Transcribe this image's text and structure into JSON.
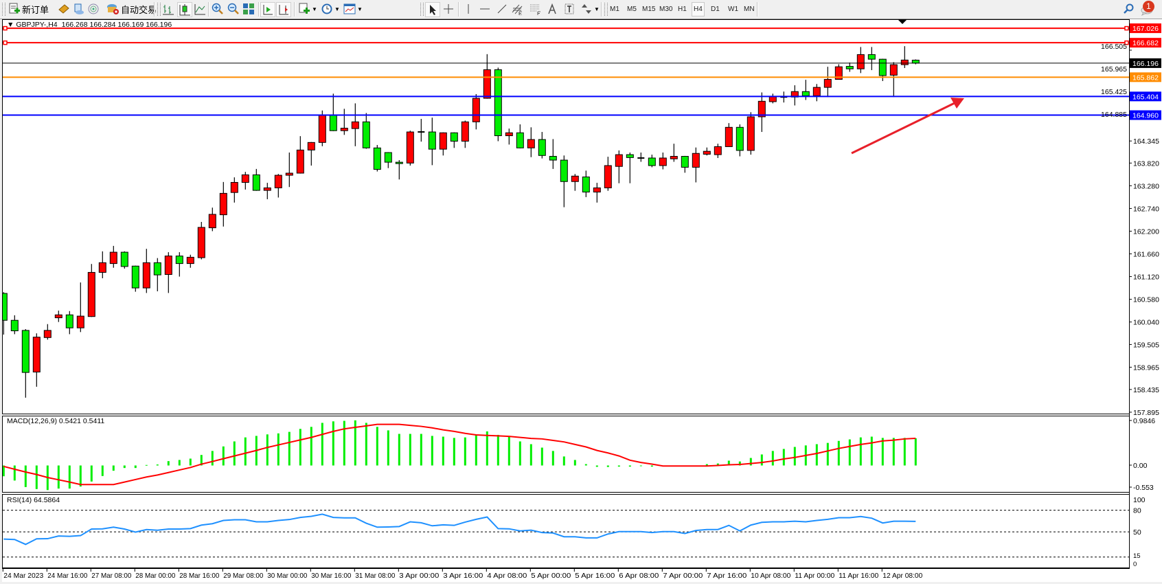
{
  "toolbar": {
    "new_order_label": "新订单",
    "auto_trade_label": "自动交易",
    "timeframes": [
      "M1",
      "M5",
      "M15",
      "M30",
      "H1",
      "H4",
      "D1",
      "W1",
      "MN"
    ],
    "active_timeframe": "H4",
    "notification_count": "1"
  },
  "chart": {
    "symbol_period": "GBPJPY-,H4",
    "ohlc_readout": "166.268 166.284 166.169 166.196"
  },
  "colors": {
    "bull_candle": "#ff0000",
    "bear_candle": "#00ee00",
    "macd_histogram": "#00ee00",
    "macd_signal": "#ff0000",
    "rsi_line": "#1e90ff",
    "annotation_arrow": "#e8202a"
  },
  "chart_data": {
    "type": "candlestick",
    "title": "GBPJPY-,H4",
    "ylim": [
      157.895,
      167.1
    ],
    "price_ticks": [
      "166.505",
      "165.965",
      "165.425",
      "164.885",
      "164.345",
      "163.820",
      "163.280",
      "162.740",
      "162.200",
      "161.660",
      "161.120",
      "160.580",
      "160.040",
      "159.505",
      "158.965",
      "158.435",
      "157.895"
    ],
    "time_labels": [
      "24 Mar 2023",
      "24 Mar 16:00",
      "27 Mar 08:00",
      "28 Mar 00:00",
      "28 Mar 16:00",
      "29 Mar 08:00",
      "30 Mar 00:00",
      "30 Mar 16:00",
      "31 Mar 08:00",
      "3 Apr 00:00",
      "3 Apr 16:00",
      "4 Apr 08:00",
      "5 Apr 00:00",
      "5 Apr 16:00",
      "6 Apr 08:00",
      "7 Apr 00:00",
      "7 Apr 16:00",
      "10 Apr 08:00",
      "11 Apr 00:00",
      "11 Apr 16:00",
      "12 Apr 08:00"
    ],
    "candles_ohlc": [
      [
        160.72,
        160.75,
        159.74,
        160.08
      ],
      [
        160.08,
        160.2,
        159.75,
        159.83
      ],
      [
        159.84,
        159.87,
        158.24,
        158.84
      ],
      [
        158.85,
        159.77,
        158.5,
        159.68
      ],
      [
        159.67,
        159.99,
        159.62,
        159.84
      ],
      [
        160.14,
        160.31,
        160.04,
        160.21
      ],
      [
        160.21,
        160.3,
        159.75,
        159.9
      ],
      [
        159.9,
        160.98,
        159.8,
        160.18
      ],
      [
        160.17,
        161.42,
        160.16,
        161.22
      ],
      [
        161.22,
        161.72,
        161.08,
        161.45
      ],
      [
        161.43,
        161.85,
        161.33,
        161.7
      ],
      [
        161.7,
        161.72,
        161.31,
        161.36
      ],
      [
        161.37,
        161.38,
        160.76,
        160.85
      ],
      [
        160.85,
        161.78,
        160.73,
        161.45
      ],
      [
        161.45,
        161.56,
        160.77,
        161.16
      ],
      [
        161.17,
        161.7,
        160.73,
        161.61
      ],
      [
        161.61,
        161.7,
        161.12,
        161.43
      ],
      [
        161.43,
        161.64,
        161.33,
        161.58
      ],
      [
        161.57,
        162.42,
        161.53,
        162.29
      ],
      [
        162.28,
        162.76,
        162.2,
        162.6
      ],
      [
        162.59,
        163.37,
        162.31,
        163.1
      ],
      [
        163.12,
        163.48,
        162.88,
        163.36
      ],
      [
        163.36,
        163.61,
        163.19,
        163.54
      ],
      [
        163.54,
        163.68,
        163.16,
        163.17
      ],
      [
        163.17,
        163.35,
        162.96,
        163.23
      ],
      [
        163.23,
        163.56,
        163.0,
        163.53
      ],
      [
        163.53,
        164.07,
        163.25,
        163.58
      ],
      [
        163.58,
        164.46,
        163.57,
        164.13
      ],
      [
        164.13,
        164.32,
        163.76,
        164.31
      ],
      [
        164.31,
        165.07,
        164.22,
        164.96
      ],
      [
        164.96,
        165.47,
        164.58,
        164.59
      ],
      [
        164.59,
        165.11,
        164.49,
        164.65
      ],
      [
        164.64,
        165.24,
        164.22,
        164.8
      ],
      [
        164.8,
        165.01,
        164.16,
        164.18
      ],
      [
        164.18,
        164.25,
        163.62,
        163.67
      ],
      [
        164.07,
        164.08,
        163.7,
        163.84
      ],
      [
        163.84,
        163.89,
        163.43,
        163.83
      ],
      [
        163.82,
        164.59,
        163.76,
        164.56
      ],
      [
        164.56,
        164.87,
        164.33,
        164.56
      ],
      [
        164.56,
        164.9,
        163.77,
        164.15
      ],
      [
        164.15,
        164.55,
        164.0,
        164.54
      ],
      [
        164.54,
        164.55,
        164.18,
        164.34
      ],
      [
        164.34,
        164.83,
        164.18,
        164.8
      ],
      [
        164.8,
        165.46,
        164.62,
        165.36
      ],
      [
        165.36,
        166.41,
        165.35,
        166.04
      ],
      [
        166.04,
        166.09,
        164.34,
        164.47
      ],
      [
        164.47,
        164.64,
        164.26,
        164.54
      ],
      [
        164.54,
        164.74,
        164.17,
        164.18
      ],
      [
        164.18,
        164.67,
        163.96,
        164.38
      ],
      [
        164.38,
        164.56,
        163.93,
        164.0
      ],
      [
        163.98,
        164.39,
        163.68,
        163.89
      ],
      [
        163.89,
        164.0,
        162.77,
        163.38
      ],
      [
        163.38,
        163.56,
        163.16,
        163.51
      ],
      [
        163.49,
        163.64,
        163.01,
        163.13
      ],
      [
        163.13,
        163.35,
        162.88,
        163.23
      ],
      [
        163.23,
        163.97,
        163.16,
        163.76
      ],
      [
        163.74,
        164.12,
        163.34,
        164.02
      ],
      [
        164.02,
        164.07,
        163.34,
        163.95
      ],
      [
        163.94,
        164.07,
        163.85,
        163.94
      ],
      [
        163.94,
        164.02,
        163.72,
        163.76
      ],
      [
        163.76,
        164.07,
        163.67,
        163.94
      ],
      [
        163.92,
        164.28,
        163.85,
        163.98
      ],
      [
        163.98,
        163.99,
        163.59,
        163.72
      ],
      [
        163.72,
        164.19,
        163.36,
        164.05
      ],
      [
        164.03,
        164.19,
        164.0,
        164.1
      ],
      [
        164.02,
        164.28,
        163.94,
        164.21
      ],
      [
        164.21,
        164.77,
        164.21,
        164.67
      ],
      [
        164.67,
        164.74,
        163.98,
        164.12
      ],
      [
        164.12,
        165.03,
        164.02,
        164.92
      ],
      [
        164.92,
        165.5,
        164.56,
        165.29
      ],
      [
        165.28,
        165.47,
        165.24,
        165.4
      ],
      [
        165.39,
        165.52,
        165.26,
        165.39
      ],
      [
        165.39,
        165.67,
        165.19,
        165.52
      ],
      [
        165.52,
        165.8,
        165.32,
        165.42
      ],
      [
        165.42,
        165.7,
        165.29,
        165.62
      ],
      [
        165.62,
        166.11,
        165.39,
        165.81
      ],
      [
        165.81,
        166.17,
        165.81,
        166.11
      ],
      [
        166.12,
        166.21,
        165.99,
        166.06
      ],
      [
        166.06,
        166.58,
        165.96,
        166.4
      ],
      [
        166.4,
        166.58,
        166.03,
        166.29
      ],
      [
        166.29,
        166.3,
        165.77,
        165.9
      ],
      [
        165.91,
        166.22,
        165.39,
        166.16
      ],
      [
        166.16,
        166.6,
        166.08,
        166.27
      ],
      [
        166.268,
        166.284,
        166.169,
        166.196
      ]
    ],
    "horizontal_lines": [
      {
        "price": 167.026,
        "label": "167.026",
        "color": "#ff0000",
        "label_text_color": "#ffffff",
        "handles": true
      },
      {
        "price": 166.682,
        "label": "166.682",
        "color": "#ff0000",
        "label_text_color": "#ffffff",
        "handles": true
      },
      {
        "price": 166.196,
        "label": "166.196",
        "color": "#000000",
        "label_text_color": "#ffffff",
        "handles": false
      },
      {
        "price": 165.862,
        "label": "165.862",
        "color": "#ff8c00",
        "label_text_color": "#ffffff",
        "handles": false
      },
      {
        "price": 165.404,
        "label": "165.404",
        "color": "#0000ff",
        "label_text_color": "#ffffff",
        "handles": false
      },
      {
        "price": 164.96,
        "label": "164.960",
        "color": "#0000ff",
        "label_text_color": "#ffffff",
        "handles": false
      }
    ],
    "macd": {
      "label": "MACD(12,26,9) 0.5421 0.5411",
      "ylim": [
        -0.553,
        0.9846
      ],
      "axis_labels": [
        "0.9846",
        "0.00",
        "-0.553"
      ],
      "histogram": [
        -0.215,
        -0.3,
        -0.43,
        -0.47,
        -0.49,
        -0.46,
        -0.46,
        -0.42,
        -0.32,
        -0.21,
        -0.105,
        -0.05,
        -0.05,
        0.01,
        0.02,
        0.087,
        0.11,
        0.137,
        0.21,
        0.29,
        0.38,
        0.48,
        0.56,
        0.59,
        0.62,
        0.64,
        0.67,
        0.73,
        0.77,
        0.85,
        0.88,
        0.89,
        0.9,
        0.85,
        0.77,
        0.7,
        0.63,
        0.63,
        0.63,
        0.59,
        0.575,
        0.55,
        0.56,
        0.61,
        0.68,
        0.61,
        0.575,
        0.48,
        0.425,
        0.356,
        0.29,
        0.18,
        0.11,
        0.027,
        -0.027,
        -0.03,
        -0.023,
        -0.023,
        -0.01,
        -0.023,
        0,
        0,
        0,
        0,
        0.027,
        0.04,
        0.096,
        0.08,
        0.15,
        0.22,
        0.29,
        0.33,
        0.37,
        0.4,
        0.425,
        0.45,
        0.49,
        0.52,
        0.56,
        0.575,
        0.55,
        0.55,
        0.55,
        0.5421
      ],
      "signal": [
        -0.018,
        -0.075,
        -0.13,
        -0.18,
        -0.24,
        -0.285,
        -0.33,
        -0.38,
        -0.38,
        -0.38,
        -0.38,
        -0.33,
        -0.28,
        -0.23,
        -0.19,
        -0.14,
        -0.09,
        -0.04,
        0.027,
        0.08,
        0.135,
        0.19,
        0.245,
        0.3,
        0.36,
        0.41,
        0.46,
        0.51,
        0.56,
        0.62,
        0.68,
        0.73,
        0.76,
        0.79,
        0.82,
        0.82,
        0.82,
        0.8,
        0.78,
        0.75,
        0.71,
        0.68,
        0.64,
        0.61,
        0.6,
        0.59,
        0.58,
        0.56,
        0.54,
        0.53,
        0.5,
        0.47,
        0.42,
        0.37,
        0.3,
        0.25,
        0.19,
        0.105,
        0.06,
        0.027,
        -0.01,
        -0.01,
        -0.01,
        -0.01,
        -0.01,
        0.0,
        0.014,
        0.02,
        0.04,
        0.06,
        0.09,
        0.13,
        0.16,
        0.2,
        0.24,
        0.29,
        0.34,
        0.38,
        0.42,
        0.45,
        0.49,
        0.505,
        0.53,
        0.5411
      ]
    },
    "rsi": {
      "label": "RSI(14) 64.5864",
      "ylim": [
        0,
        100
      ],
      "levels": [
        80,
        50,
        15
      ],
      "axis_labels": [
        "100",
        "80",
        "50",
        "15",
        "0"
      ],
      "values": [
        40,
        39.4,
        32.6,
        40.3,
        40.5,
        44.2,
        43.8,
        44.8,
        53.9,
        54.2,
        56.5,
        53.9,
        49.7,
        53.2,
        52.3,
        53.9,
        53.9,
        54.5,
        59.4,
        61.3,
        65.8,
        66.8,
        66.8,
        63.9,
        63.9,
        65.8,
        67.1,
        70,
        71.6,
        74.5,
        70,
        69.4,
        69.4,
        62,
        56.5,
        56.8,
        57.4,
        63.9,
        62.6,
        58.4,
        59.7,
        59,
        63.5,
        67.4,
        70.6,
        54.5,
        54.2,
        51.3,
        52.3,
        49,
        48.4,
        43.2,
        43.2,
        41.6,
        41.6,
        47,
        50.3,
        50.3,
        50.3,
        49,
        50.3,
        50.3,
        47.7,
        51.9,
        53.2,
        53.2,
        59,
        51.3,
        59.4,
        63.2,
        63.9,
        63.9,
        64.8,
        63.9,
        65.8,
        67.4,
        69.7,
        69.7,
        71.3,
        69,
        62.3,
        64.8,
        64.8,
        64.5864
      ]
    }
  }
}
